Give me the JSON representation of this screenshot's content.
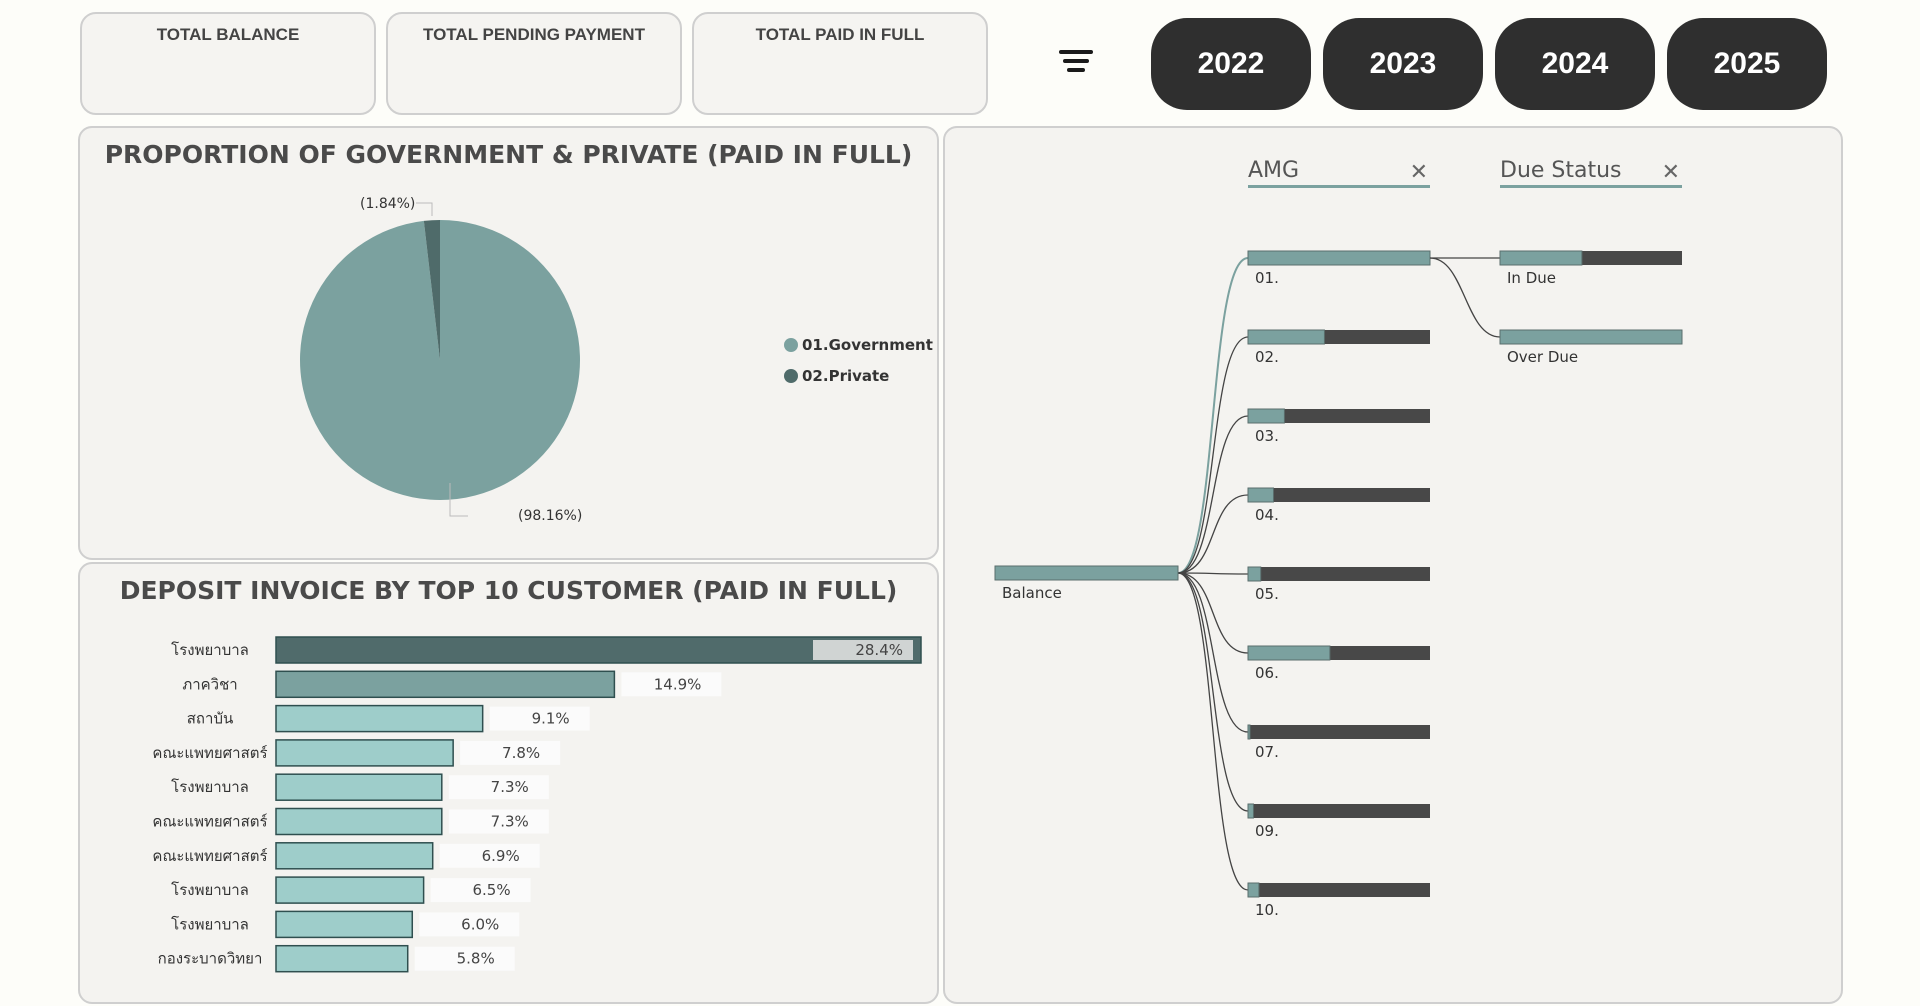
{
  "kpis": [
    {
      "label": "TOTAL BALANCE"
    },
    {
      "label": "TOTAL PENDING PAYMENT"
    },
    {
      "label": "TOTAL PAID IN FULL"
    }
  ],
  "years": [
    "2022",
    "2023",
    "2024",
    "2025"
  ],
  "icons": {
    "filter": "filter-icon",
    "close": "close-icon"
  },
  "colors": {
    "government": "#7ba19f",
    "private": "#4f6b6a",
    "bar_top": "#506b6b",
    "bar_second": "#7ba19f",
    "bar_rest": "#9ecdca",
    "dark_segment": "#484848",
    "year_button": "#2f2f2f"
  },
  "pie_panel": {
    "title": "PROPORTION OF GOVERNMENT & PRIVATE (PAID IN FULL)",
    "legend": [
      "01.Government",
      "02.Private"
    ],
    "labels": [
      "(98.16%)",
      "(1.84%)"
    ]
  },
  "bar_panel": {
    "title": "DEPOSIT INVOICE BY TOP 10 CUSTOMER (PAID IN FULL)"
  },
  "tree_panel": {
    "root_label": "Balance",
    "level1_title": "AMG",
    "level2_title": "Due Status"
  },
  "chart_data": [
    {
      "type": "pie",
      "title": "PROPORTION OF GOVERNMENT & PRIVATE (PAID IN FULL)",
      "categories": [
        "01.Government",
        "02.Private"
      ],
      "values": [
        98.16,
        1.84
      ],
      "unit": "%",
      "legend": "right"
    },
    {
      "type": "bar",
      "orientation": "horizontal",
      "title": "DEPOSIT INVOICE BY TOP 10 CUSTOMER (PAID IN FULL)",
      "categories": [
        "โรงพยาบาล",
        "ภาควิชา",
        "สถาบัน",
        "คณะแพทยศาสตร์",
        "โรงพยาบาล",
        "คณะแพทยศาสตร์",
        "คณะแพทยศาสตร์",
        "โรงพยาบาล",
        "โรงพยาบาล",
        "กองระบาดวิทยา"
      ],
      "values": [
        28.4,
        14.9,
        9.1,
        7.8,
        7.3,
        7.3,
        6.9,
        6.5,
        6.0,
        5.8
      ],
      "value_labels": [
        "28.4%",
        "14.9%",
        "9.1%",
        "7.8%",
        "7.3%",
        "7.3%",
        "6.9%",
        "6.5%",
        "6.0%",
        "5.8%"
      ],
      "xlim": [
        0,
        28.4
      ]
    },
    {
      "type": "decomposition_tree",
      "root": "Balance",
      "levels": [
        "AMG",
        "Due Status"
      ],
      "amg_nodes": [
        {
          "label": "01.",
          "share": 1.0
        },
        {
          "label": "02.",
          "share": 0.42
        },
        {
          "label": "03.",
          "share": 0.2
        },
        {
          "label": "04.",
          "share": 0.14
        },
        {
          "label": "05.",
          "share": 0.07
        },
        {
          "label": "06.",
          "share": 0.45
        },
        {
          "label": "07.",
          "share": 0.01
        },
        {
          "label": "09.",
          "share": 0.03
        },
        {
          "label": "10.",
          "share": 0.06
        }
      ],
      "due_status_nodes": [
        {
          "label": "In Due",
          "share": 0.45
        },
        {
          "label": "Over Due",
          "share": 1.0
        }
      ]
    }
  ]
}
